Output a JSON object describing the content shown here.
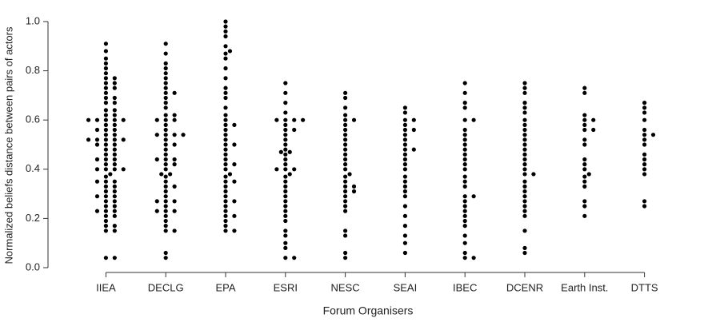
{
  "chart_data": {
    "type": "beeswarm",
    "x_label": "Forum Organisers",
    "y_label": "Normalized beliefs distance between pairs of actors",
    "color": "#000000",
    "ylim": [
      0,
      1.0
    ],
    "yticks": [
      {
        "value": 0,
        "label": "0.0"
      },
      0.2,
      0.4,
      0.6,
      0.8,
      {
        "value": 1.0,
        "label": "1.0"
      }
    ],
    "categories": [
      "IIEA",
      "DECLG",
      "EPA",
      "ESRI",
      "NESC",
      "SEAI",
      "IBEC",
      "DCENR",
      "Earth Inst.",
      "DTTS"
    ],
    "values": [
      [
        0.04,
        0.04,
        0.15,
        0.15,
        0.17,
        0.17,
        0.19,
        0.21,
        0.21,
        0.23,
        0.23,
        0.23,
        0.25,
        0.25,
        0.27,
        0.27,
        0.29,
        0.29,
        0.29,
        0.31,
        0.31,
        0.33,
        0.33,
        0.35,
        0.35,
        0.35,
        0.37,
        0.38,
        0.4,
        0.4,
        0.4,
        0.4,
        0.42,
        0.42,
        0.44,
        0.44,
        0.44,
        0.46,
        0.46,
        0.48,
        0.48,
        0.5,
        0.5,
        0.5,
        0.52,
        0.52,
        0.52,
        0.52,
        0.52,
        0.54,
        0.54,
        0.56,
        0.56,
        0.56,
        0.58,
        0.58,
        0.6,
        0.6,
        0.6,
        0.6,
        0.6,
        0.62,
        0.62,
        0.64,
        0.64,
        0.67,
        0.67,
        0.69,
        0.69,
        0.71,
        0.73,
        0.73,
        0.75,
        0.75,
        0.77,
        0.77,
        0.79,
        0.81,
        0.83,
        0.85,
        0.88,
        0.91
      ],
      [
        0.04,
        0.06,
        0.15,
        0.15,
        0.17,
        0.19,
        0.21,
        0.23,
        0.23,
        0.23,
        0.25,
        0.27,
        0.27,
        0.27,
        0.29,
        0.31,
        0.33,
        0.33,
        0.35,
        0.37,
        0.38,
        0.38,
        0.4,
        0.42,
        0.42,
        0.44,
        0.44,
        0.44,
        0.46,
        0.48,
        0.5,
        0.5,
        0.52,
        0.54,
        0.54,
        0.54,
        0.54,
        0.56,
        0.58,
        0.6,
        0.6,
        0.6,
        0.62,
        0.62,
        0.65,
        0.67,
        0.69,
        0.71,
        0.71,
        0.73,
        0.75,
        0.77,
        0.79,
        0.81,
        0.83,
        0.87,
        0.91
      ],
      [
        0.15,
        0.15,
        0.17,
        0.19,
        0.21,
        0.21,
        0.23,
        0.25,
        0.27,
        0.27,
        0.29,
        0.31,
        0.33,
        0.35,
        0.35,
        0.37,
        0.38,
        0.4,
        0.42,
        0.42,
        0.44,
        0.46,
        0.48,
        0.5,
        0.5,
        0.52,
        0.54,
        0.56,
        0.58,
        0.58,
        0.6,
        0.62,
        0.65,
        0.69,
        0.71,
        0.73,
        0.77,
        0.81,
        0.85,
        0.87,
        0.88,
        0.9,
        0.94,
        0.96,
        0.98,
        1.0
      ],
      [
        0.04,
        0.04,
        0.08,
        0.1,
        0.13,
        0.15,
        0.19,
        0.21,
        0.23,
        0.25,
        0.27,
        0.29,
        0.31,
        0.33,
        0.35,
        0.37,
        0.38,
        0.4,
        0.4,
        0.4,
        0.42,
        0.44,
        0.46,
        0.47,
        0.47,
        0.48,
        0.5,
        0.52,
        0.54,
        0.56,
        0.56,
        0.58,
        0.6,
        0.6,
        0.6,
        0.6,
        0.63,
        0.67,
        0.71,
        0.75
      ],
      [
        0.04,
        0.06,
        0.13,
        0.15,
        0.23,
        0.25,
        0.27,
        0.29,
        0.31,
        0.31,
        0.33,
        0.33,
        0.35,
        0.37,
        0.38,
        0.4,
        0.42,
        0.44,
        0.46,
        0.48,
        0.5,
        0.52,
        0.54,
        0.56,
        0.58,
        0.6,
        0.6,
        0.62,
        0.65,
        0.69,
        0.71
      ],
      [
        0.06,
        0.1,
        0.13,
        0.17,
        0.21,
        0.25,
        0.29,
        0.31,
        0.33,
        0.35,
        0.37,
        0.4,
        0.42,
        0.44,
        0.46,
        0.48,
        0.48,
        0.5,
        0.52,
        0.54,
        0.56,
        0.56,
        0.58,
        0.6,
        0.6,
        0.63,
        0.65
      ],
      [
        0.04,
        0.04,
        0.06,
        0.1,
        0.13,
        0.17,
        0.19,
        0.21,
        0.23,
        0.25,
        0.27,
        0.29,
        0.29,
        0.33,
        0.35,
        0.37,
        0.4,
        0.42,
        0.44,
        0.46,
        0.48,
        0.5,
        0.52,
        0.54,
        0.56,
        0.6,
        0.6,
        0.65,
        0.67,
        0.71,
        0.75
      ],
      [
        0.06,
        0.08,
        0.15,
        0.21,
        0.23,
        0.25,
        0.27,
        0.29,
        0.31,
        0.33,
        0.35,
        0.38,
        0.38,
        0.4,
        0.42,
        0.44,
        0.46,
        0.48,
        0.5,
        0.52,
        0.54,
        0.56,
        0.58,
        0.6,
        0.63,
        0.65,
        0.67,
        0.71,
        0.73,
        0.75
      ],
      [
        0.21,
        0.25,
        0.27,
        0.33,
        0.35,
        0.37,
        0.38,
        0.4,
        0.42,
        0.44,
        0.5,
        0.52,
        0.56,
        0.56,
        0.58,
        0.6,
        0.6,
        0.62,
        0.71,
        0.73
      ],
      [
        0.25,
        0.27,
        0.38,
        0.4,
        0.42,
        0.44,
        0.46,
        0.5,
        0.52,
        0.54,
        0.54,
        0.56,
        0.6,
        0.63,
        0.65,
        0.67
      ]
    ]
  }
}
